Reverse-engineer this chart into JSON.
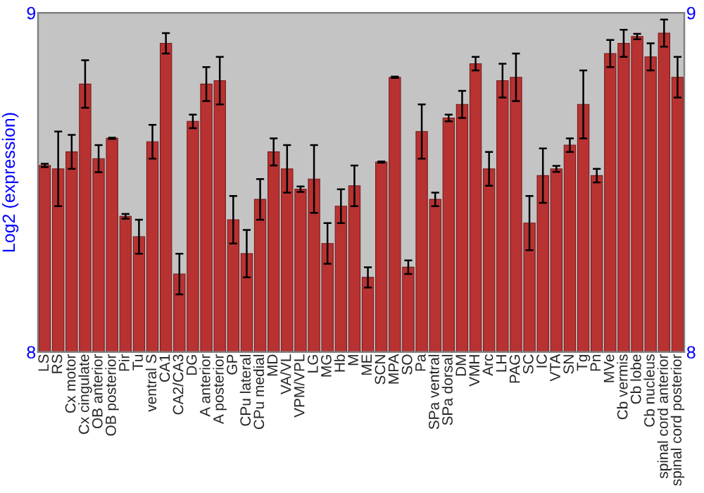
{
  "chart_data": {
    "type": "bar",
    "ylabel": "Log2 (expression)",
    "categories": [
      "LS",
      "RS",
      "Cx motor",
      "Cx cingulate",
      "OB anterior",
      "OB posterior",
      "Pir",
      "Tu",
      "ventral S",
      "CA1",
      "CA2/CA3",
      "DG",
      "A anterior",
      "A posterior",
      "GP",
      "CPu lateral",
      "CPu medial",
      "MD",
      "VA/VL",
      "VPM/VPL",
      "LG",
      "MG",
      "Hb",
      "M",
      "ME",
      "SCN",
      "MPA",
      "SO",
      "Pa",
      "SPa ventral",
      "SPa dorsal",
      "DM",
      "VMH",
      "Arc",
      "LH",
      "PAG",
      "SC",
      "IC",
      "VTA",
      "SN",
      "Tg",
      "Pn",
      "MVe",
      "Cb vermis",
      "Cb lobe",
      "Cb nucleus",
      "spinal cord anterior",
      "spinal cord posterior"
    ],
    "values": [
      8.55,
      8.54,
      8.59,
      8.79,
      8.57,
      8.63,
      8.4,
      8.34,
      8.62,
      8.91,
      8.23,
      8.68,
      8.79,
      8.8,
      8.39,
      8.29,
      8.45,
      8.59,
      8.54,
      8.48,
      8.51,
      8.32,
      8.43,
      8.49,
      8.22,
      8.56,
      8.81,
      8.25,
      8.65,
      8.45,
      8.69,
      8.73,
      8.85,
      8.54,
      8.8,
      8.81,
      8.38,
      8.52,
      8.54,
      8.61,
      8.73,
      8.52,
      8.88,
      8.91,
      8.93,
      8.87,
      8.94,
      8.81
    ],
    "errors": [
      0.005,
      0.11,
      0.05,
      0.07,
      0.04,
      0.002,
      0.007,
      0.05,
      0.05,
      0.03,
      0.06,
      0.02,
      0.05,
      0.07,
      0.07,
      0.07,
      0.06,
      0.04,
      0.07,
      0.008,
      0.1,
      0.06,
      0.05,
      0.06,
      0.03,
      0.002,
      0.002,
      0.02,
      0.08,
      0.02,
      0.01,
      0.04,
      0.02,
      0.05,
      0.05,
      0.07,
      0.08,
      0.08,
      0.009,
      0.02,
      0.1,
      0.02,
      0.04,
      0.04,
      0.008,
      0.04,
      0.04,
      0.06
    ],
    "color": "#b83232",
    "ylim": [
      8,
      9
    ],
    "yticks": [
      8,
      9
    ],
    "y2lim": [
      8,
      9
    ],
    "y2ticks": [
      8,
      9
    ],
    "grid": false,
    "legend": false
  }
}
